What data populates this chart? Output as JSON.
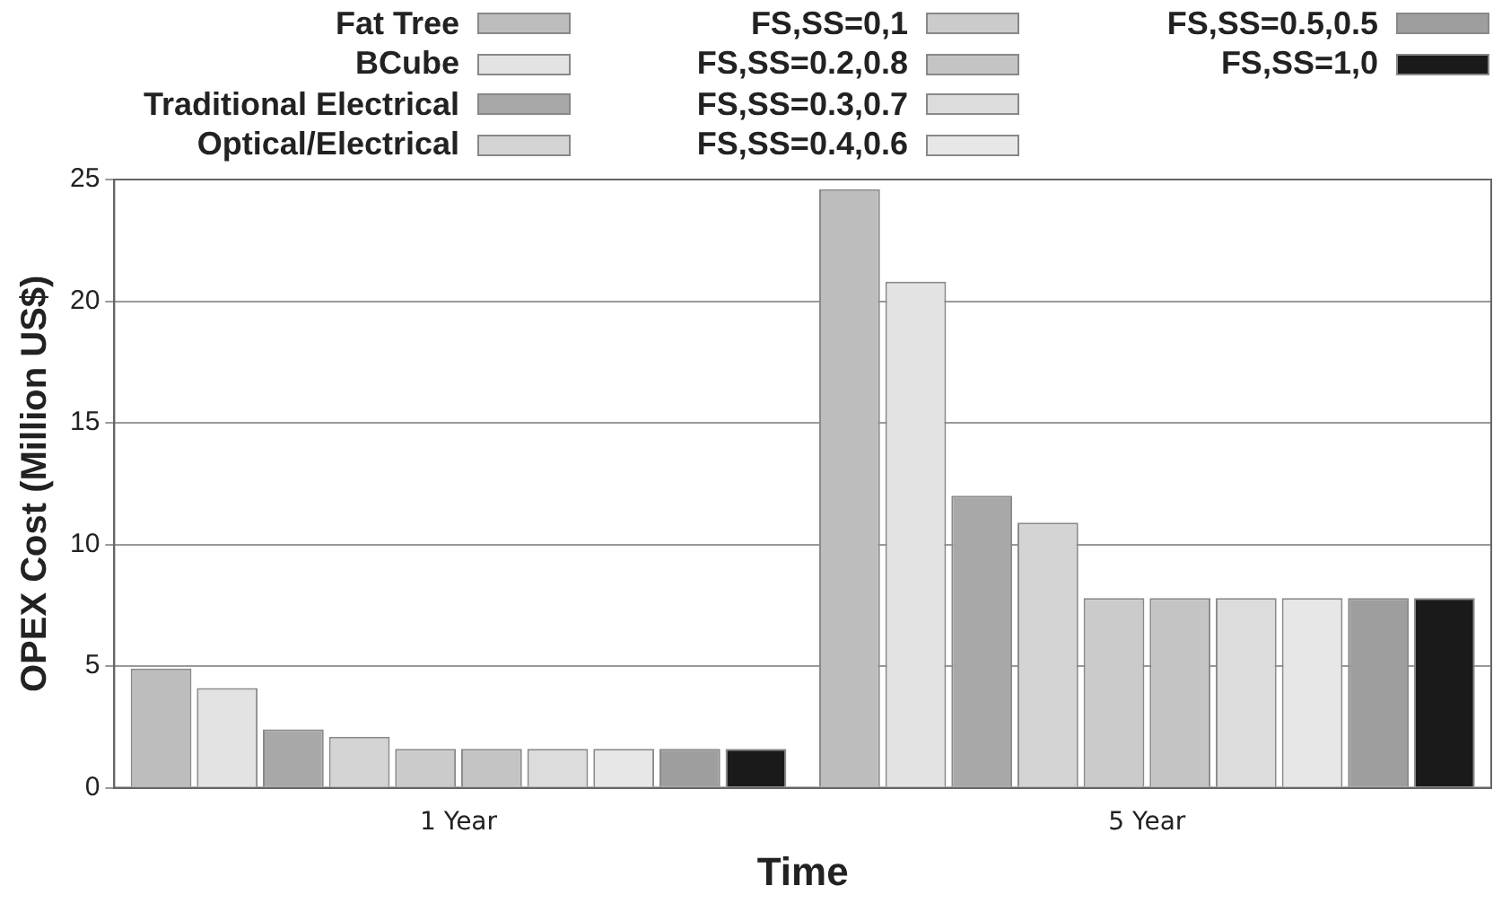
{
  "chart_data": {
    "type": "bar",
    "xlabel": "Time",
    "ylabel": "OPEX Cost (Million US$)",
    "categories": [
      "1 Year",
      "5 Year"
    ],
    "series": [
      {
        "name": "Fat Tree",
        "color": "#bdbdbd",
        "values": [
          4.9,
          24.6
        ]
      },
      {
        "name": "BCube",
        "color": "#e3e3e3",
        "values": [
          4.1,
          20.8
        ]
      },
      {
        "name": "Traditional Electrical",
        "color": "#a8a8a8",
        "values": [
          2.4,
          12.0
        ]
      },
      {
        "name": "Optical/Electrical",
        "color": "#d4d4d4",
        "values": [
          2.1,
          10.9
        ]
      },
      {
        "name": "FS,SS=0,1",
        "color": "#cbcbcb",
        "values": [
          1.6,
          7.8
        ]
      },
      {
        "name": "FS,SS=0.2,0.8",
        "color": "#c4c4c4",
        "values": [
          1.6,
          7.8
        ]
      },
      {
        "name": "FS,SS=0.3,0.7",
        "color": "#dcdcdc",
        "values": [
          1.6,
          7.8
        ]
      },
      {
        "name": "FS,SS=0.4,0.6",
        "color": "#e7e7e7",
        "values": [
          1.6,
          7.8
        ]
      },
      {
        "name": "FS,SS=0.5,0.5",
        "color": "#9e9e9e",
        "values": [
          1.6,
          7.8
        ]
      },
      {
        "name": "FS,SS=1,0",
        "color": "#1a1a1a",
        "values": [
          1.6,
          7.8
        ]
      }
    ],
    "ylim": [
      0,
      25
    ],
    "yticks": [
      0,
      5,
      10,
      15,
      20,
      25
    ],
    "grid": "y",
    "legend": "top"
  }
}
